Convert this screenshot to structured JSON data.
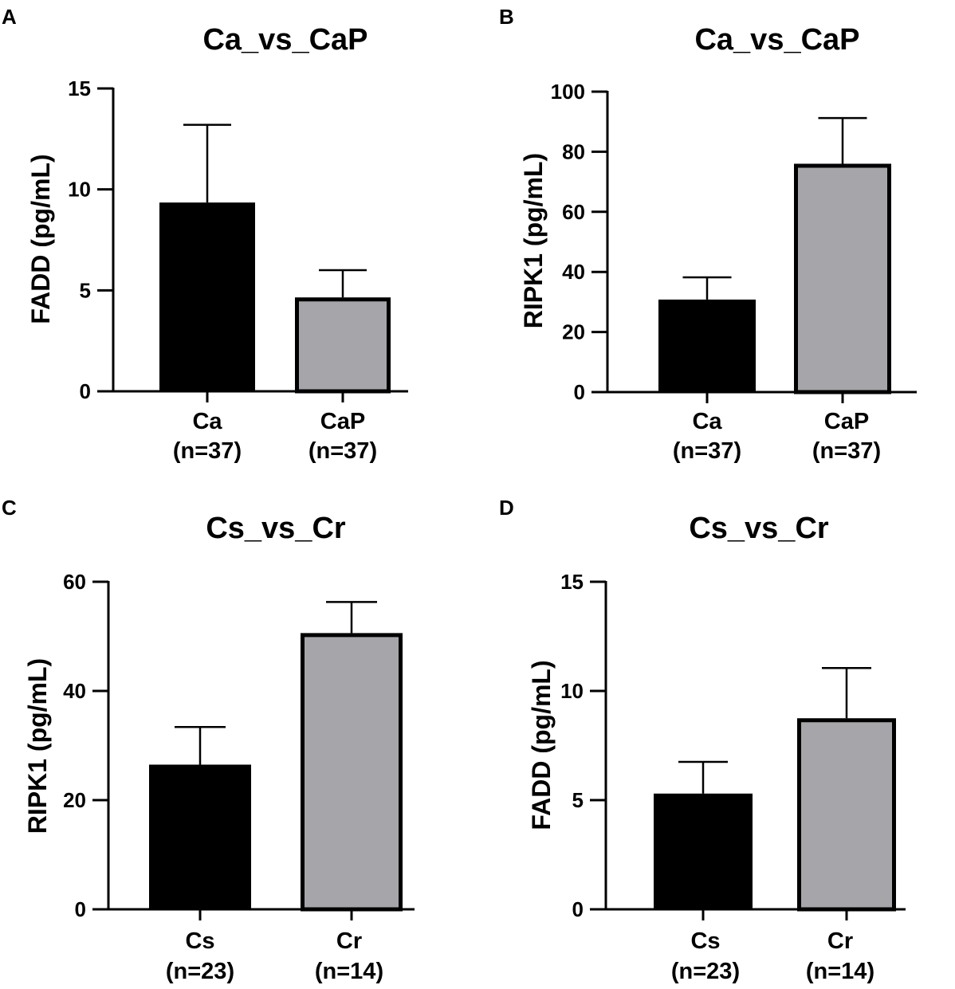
{
  "chart_data": [
    {
      "panel": "A",
      "type": "bar",
      "title": "Ca_vs_CaP",
      "xlabel": "",
      "ylabel": "FADD (pg/mL)",
      "ylim": [
        0,
        15
      ],
      "yticks": [
        0,
        5,
        10,
        15
      ],
      "categories": [
        "Ca",
        "CaP"
      ],
      "category_n": [
        "(n=37)",
        "(n=37)"
      ],
      "values": [
        9.35,
        4.65
      ],
      "errors": [
        3.85,
        1.35
      ],
      "colors": [
        "#000000",
        "#a5a5aa"
      ]
    },
    {
      "panel": "B",
      "type": "bar",
      "title": "Ca_vs_CaP",
      "xlabel": "",
      "ylabel": "RIPK1 (pg/mL)",
      "ylim": [
        0,
        100
      ],
      "yticks": [
        0,
        20,
        40,
        60,
        80,
        100
      ],
      "categories": [
        "Ca",
        "CaP"
      ],
      "category_n": [
        "(n=37)",
        "(n=37)"
      ],
      "values": [
        30.8,
        76.0
      ],
      "errors": [
        7.4,
        15.2
      ],
      "colors": [
        "#000000",
        "#a5a5aa"
      ]
    },
    {
      "panel": "C",
      "type": "bar",
      "title": "Cs_vs_Cr",
      "xlabel": "",
      "ylabel": "RIPK1 (pg/mL)",
      "ylim": [
        0,
        60
      ],
      "yticks": [
        0,
        20,
        40,
        60
      ],
      "categories": [
        "Cs",
        "Cr"
      ],
      "category_n": [
        "(n=23)",
        "(n=14)"
      ],
      "values": [
        26.5,
        50.6
      ],
      "errors": [
        6.9,
        5.7
      ],
      "colors": [
        "#000000",
        "#a5a5aa"
      ]
    },
    {
      "panel": "D",
      "type": "bar",
      "title": "Cs_vs_Cr",
      "xlabel": "",
      "ylabel": "FADD (pg/mL)",
      "ylim": [
        0,
        15
      ],
      "yticks": [
        0,
        5,
        10,
        15
      ],
      "categories": [
        "Cs",
        "Cr"
      ],
      "category_n": [
        "(n=23)",
        "(n=14)"
      ],
      "values": [
        5.3,
        8.75
      ],
      "errors": [
        1.45,
        2.3
      ],
      "colors": [
        "#000000",
        "#a5a5aa"
      ]
    }
  ]
}
